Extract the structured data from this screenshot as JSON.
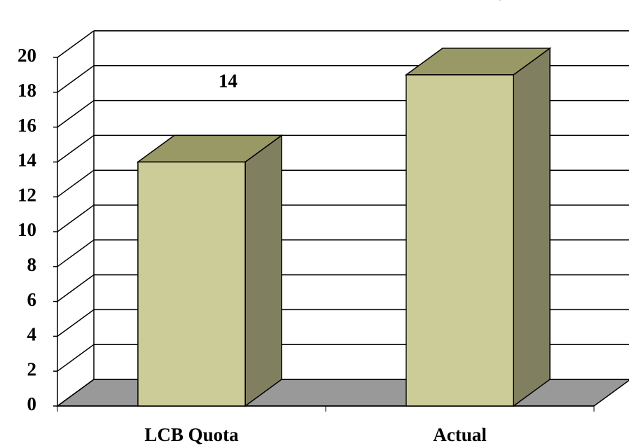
{
  "chart_data": {
    "type": "bar3d",
    "categories": [
      "LCB Quota",
      "Actual"
    ],
    "values": [
      14,
      19
    ],
    "colors": {
      "front": "#cccc99",
      "top": "#999966",
      "side": "#808060",
      "floor": "#999999"
    },
    "ylim": [
      0,
      20
    ],
    "yticks": [
      0,
      2,
      4,
      6,
      8,
      10,
      12,
      14,
      16,
      18,
      20
    ],
    "grid": true
  }
}
